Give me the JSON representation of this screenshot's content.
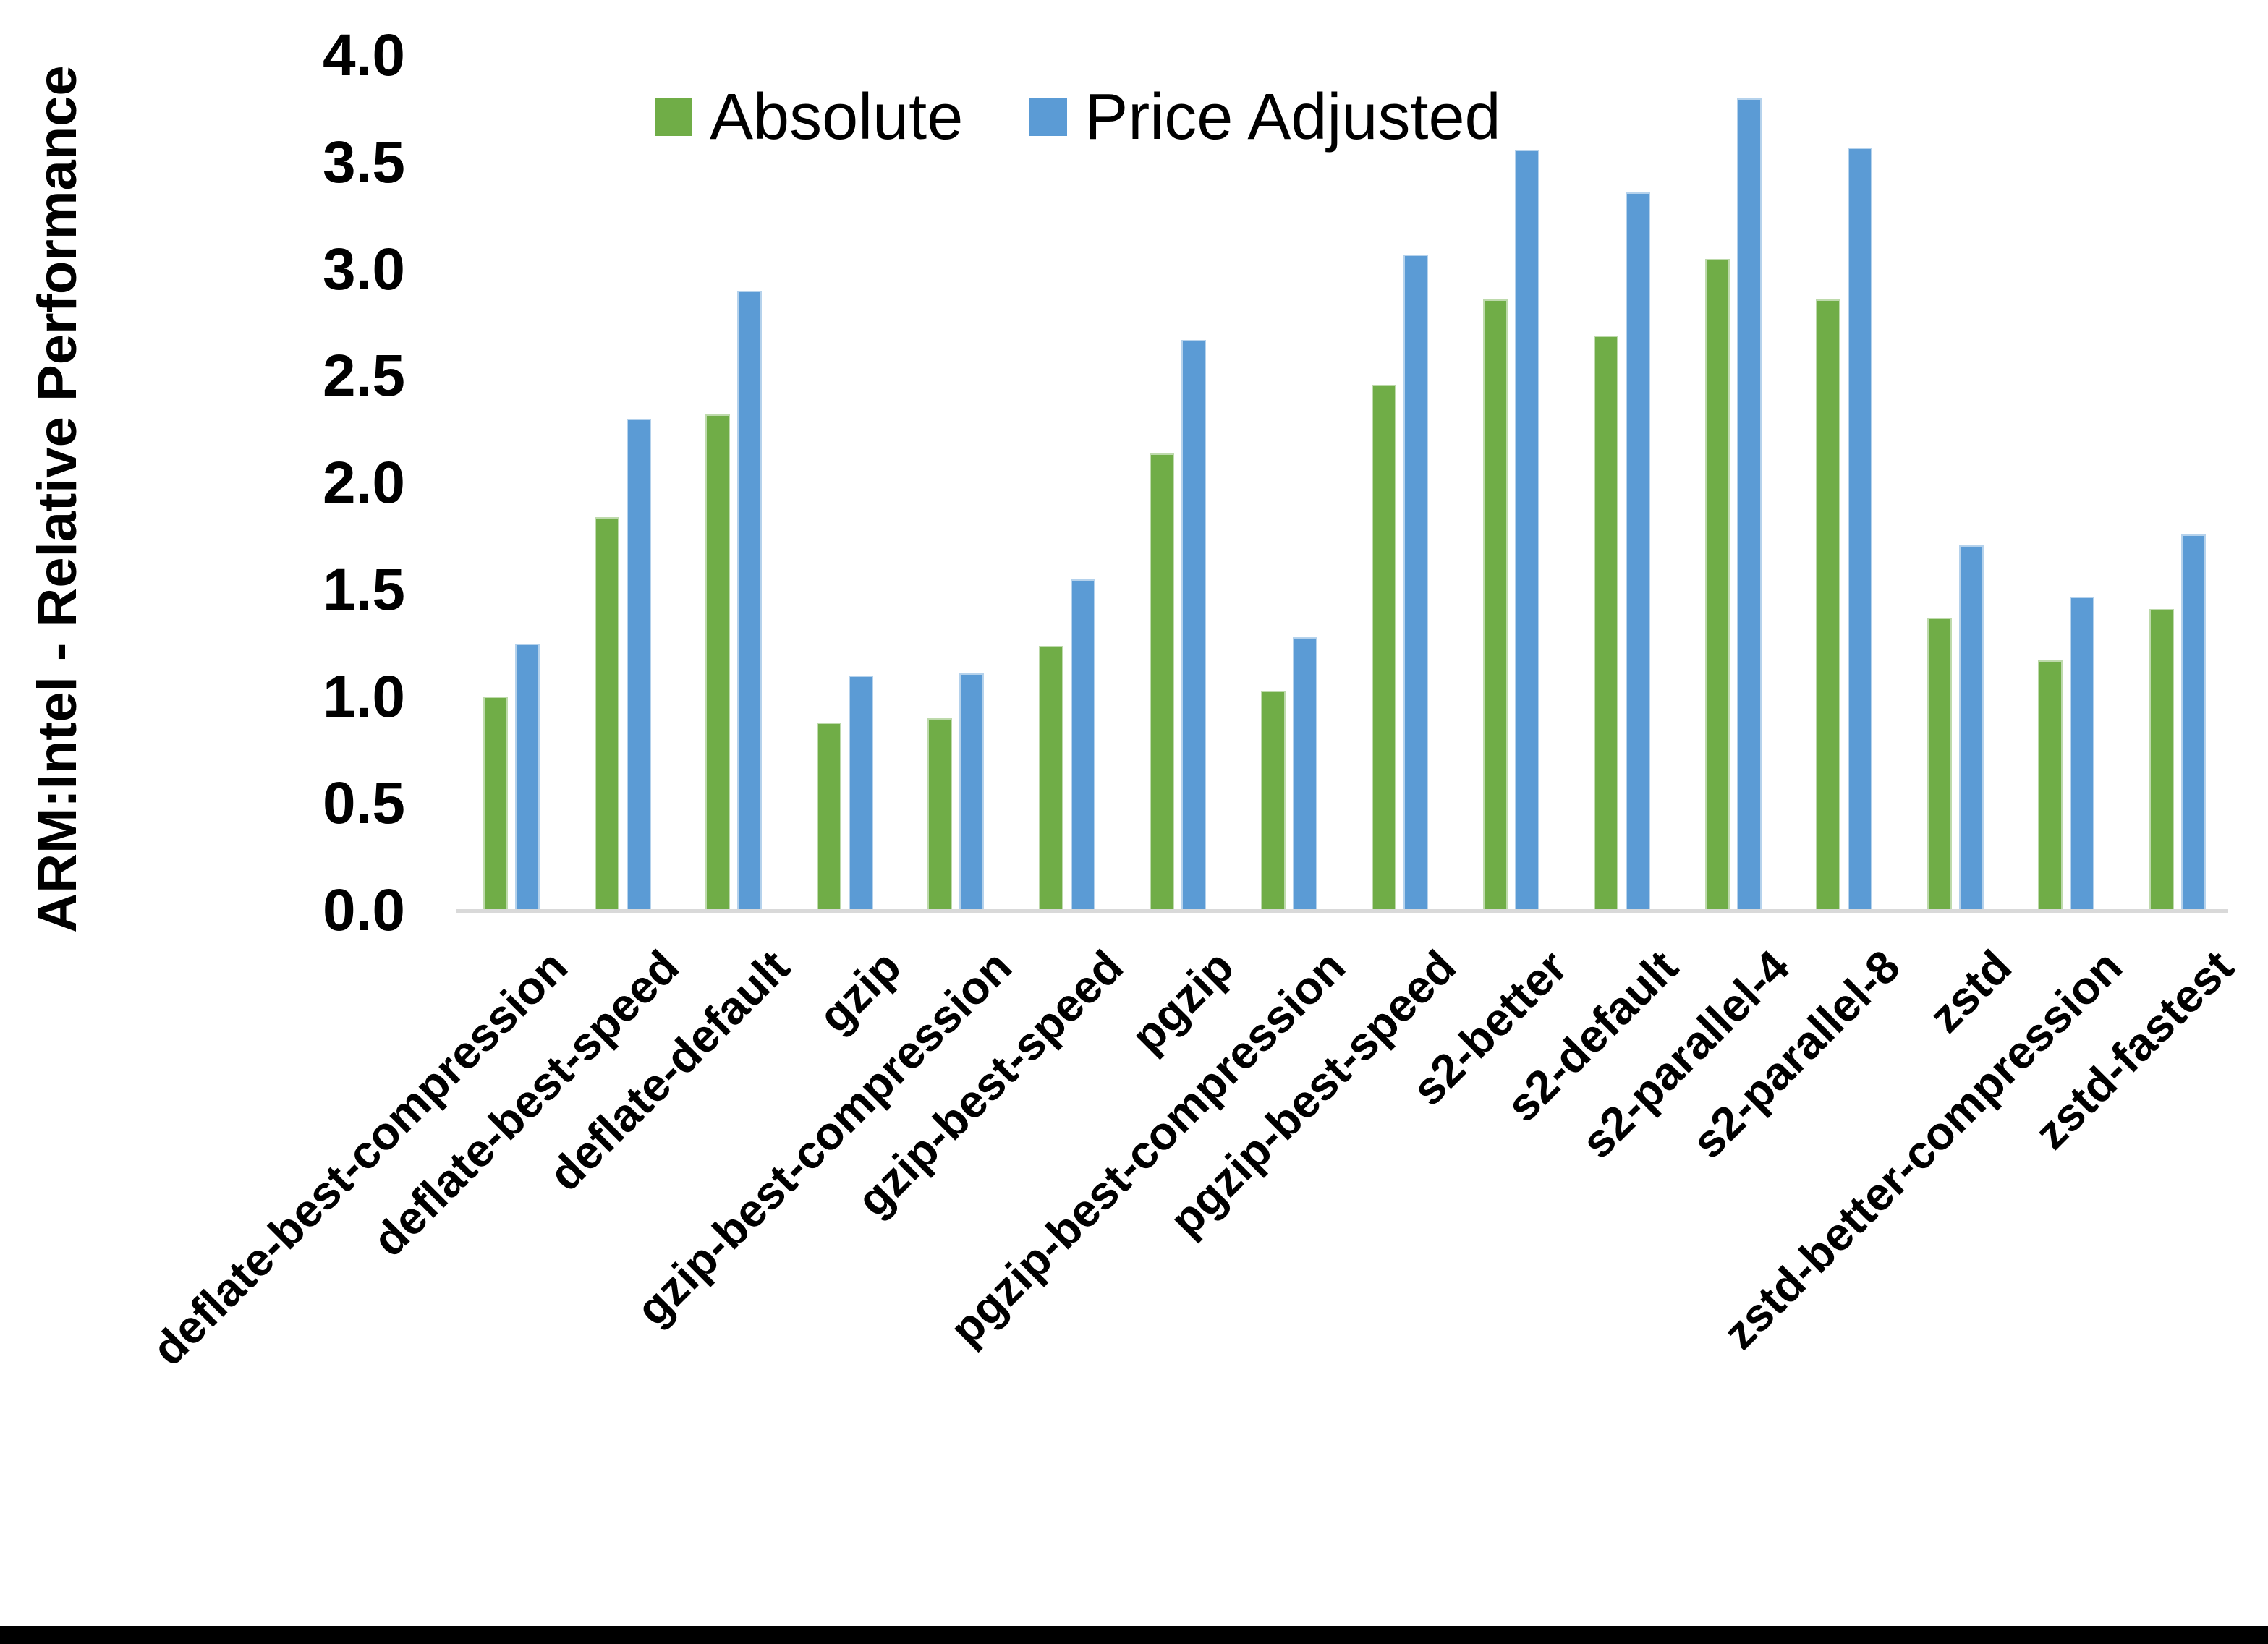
{
  "chart_data": {
    "type": "bar",
    "title": "",
    "xlabel": "",
    "ylabel": "ARM:Intel - Relative Performance",
    "ylim": [
      0.0,
      4.0
    ],
    "ytick_step": 0.5,
    "ytick_labels": [
      "0.0",
      "0.5",
      "1.0",
      "1.5",
      "2.0",
      "2.5",
      "3.0",
      "3.5",
      "4.0"
    ],
    "grid": false,
    "legend_position": "top-center-inside",
    "axis_line_color": "#D9D9D9",
    "text_color": "#000000",
    "categories": [
      "deflate-best-compression",
      "deflate-best-speed",
      "deflate-default",
      "gzip",
      "gzip-best-compression",
      "gzip-best-speed",
      "pgzip",
      "pgzip-best-compression",
      "pgzip-best-speed",
      "s2-better",
      "s2-default",
      "s2-parallel-4",
      "s2-parallel-8",
      "zstd",
      "zstd-better-compression",
      "zstd-fastest"
    ],
    "series": [
      {
        "name": "Absolute",
        "color": "#70AD47",
        "values": [
          1.0,
          1.84,
          2.32,
          0.88,
          0.9,
          1.24,
          2.14,
          1.03,
          2.46,
          2.86,
          2.69,
          3.05,
          2.86,
          1.37,
          1.17,
          1.41
        ]
      },
      {
        "name": "Price Adjusted",
        "color": "#5B9BD5",
        "values": [
          1.25,
          2.3,
          2.9,
          1.1,
          1.11,
          1.55,
          2.67,
          1.28,
          3.07,
          3.56,
          3.36,
          3.8,
          3.57,
          1.71,
          1.47,
          1.76
        ]
      }
    ]
  }
}
